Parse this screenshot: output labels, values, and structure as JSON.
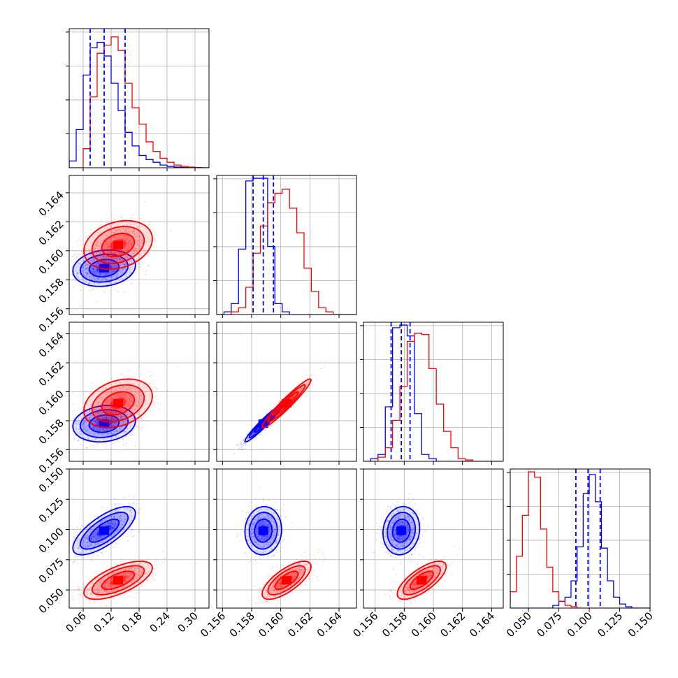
{
  "chart_data": {
    "type": "corner",
    "grid": true,
    "series": [
      {
        "name": "",
        "color": "#0000ff"
      },
      {
        "name": "",
        "color": "#ff0000"
      }
    ],
    "parameters": [
      {
        "range": [
          0.03,
          0.33
        ],
        "ticks": [
          0.06,
          0.12,
          0.18,
          0.24,
          0.3
        ],
        "tick_labels": [
          "0.06",
          "0.12",
          "0.18",
          "0.24",
          "0.30"
        ]
      },
      {
        "range": [
          0.1556,
          0.1652
        ],
        "ticks": [
          0.156,
          0.158,
          0.16,
          0.162,
          0.164
        ],
        "tick_labels": [
          "0.156",
          "0.158",
          "0.160",
          "0.162",
          "0.164"
        ]
      },
      {
        "range": [
          0.1552,
          0.1648
        ],
        "ticks": [
          0.156,
          0.158,
          0.16,
          0.162,
          0.164
        ],
        "tick_labels": [
          "0.156",
          "0.158",
          "0.160",
          "0.162",
          "0.164"
        ]
      },
      {
        "range": [
          0.035,
          0.15
        ],
        "ticks": [
          0.05,
          0.075,
          0.1,
          0.125,
          0.15
        ],
        "tick_labels": [
          "0.050",
          "0.075",
          "0.100",
          "0.125",
          "0.150"
        ]
      }
    ],
    "blue": {
      "means": [
        0.105,
        0.1588,
        0.1578,
        0.099
      ],
      "sigmas": [
        0.032,
        0.0006,
        0.0006,
        0.0095
      ],
      "quantiles": [
        [
          0.075,
          0.105,
          0.15
        ],
        [
          0.1581,
          0.1588,
          0.1595
        ],
        [
          0.1571,
          0.1578,
          0.1584
        ],
        [
          0.089,
          0.099,
          0.109
        ]
      ]
    },
    "red": {
      "means": [
        0.135,
        0.1604,
        0.1592,
        0.058
      ],
      "sigmas": [
        0.035,
        0.0008,
        0.0008,
        0.0075
      ]
    },
    "correlations": {
      "blue": {
        "0-1": 0.15,
        "0-2": 0.15,
        "0-3": 0.72,
        "1-2": 0.96,
        "1-3": 0.05,
        "2-3": 0.1
      },
      "red": {
        "0-1": 0.25,
        "0-2": 0.3,
        "0-3": 0.65,
        "1-2": 0.96,
        "1-3": 0.72,
        "2-3": 0.72
      }
    },
    "histograms": {
      "0": {
        "bins": [
          0.03,
          0.045,
          0.06,
          0.075,
          0.09,
          0.105,
          0.12,
          0.135,
          0.15,
          0.165,
          0.18,
          0.195,
          0.21,
          0.225,
          0.24,
          0.255,
          0.27,
          0.285,
          0.3,
          0.315,
          0.33
        ],
        "blue": [
          0.05,
          0.28,
          0.68,
          0.88,
          0.92,
          0.82,
          0.62,
          0.42,
          0.26,
          0.16,
          0.09,
          0.06,
          0.04,
          0.02,
          0.01,
          0.005,
          0.002,
          0,
          0,
          0
        ],
        "red": [
          0,
          0,
          0.14,
          0.52,
          0.84,
          0.9,
          0.96,
          0.86,
          0.62,
          0.44,
          0.32,
          0.19,
          0.12,
          0.07,
          0.04,
          0.02,
          0.01,
          0.005,
          0.002,
          0
        ]
      },
      "1": {
        "bins": [
          0.1556,
          0.1561,
          0.1566,
          0.1571,
          0.1576,
          0.1581,
          0.1586,
          0.1591,
          0.1596,
          0.1601,
          0.1606,
          0.1611,
          0.1616,
          0.1621,
          0.1626,
          0.1631,
          0.1636,
          0.1641,
          0.1646,
          0.1651
        ],
        "blue": [
          0,
          0.02,
          0.08,
          0.48,
          0.98,
          1.0,
          1.0,
          0.5,
          0.08,
          0.02,
          0,
          0,
          0,
          0,
          0,
          0,
          0,
          0,
          0
        ],
        "red": [
          0,
          0,
          0.02,
          0.05,
          0.2,
          0.45,
          0.65,
          0.82,
          0.89,
          0.92,
          0.78,
          0.6,
          0.34,
          0.17,
          0.05,
          0.02,
          0,
          0,
          0
        ]
      },
      "2": {
        "bins": [
          0.1552,
          0.1557,
          0.1562,
          0.1567,
          0.1572,
          0.1577,
          0.1582,
          0.1587,
          0.1592,
          0.1597,
          0.1602,
          0.1607,
          0.1612,
          0.1617,
          0.1622,
          0.1627,
          0.1632,
          0.1637,
          0.1642,
          0.1647
        ],
        "blue": [
          0,
          0.02,
          0.05,
          0.4,
          0.98,
          1.0,
          0.92,
          0.35,
          0.05,
          0.02,
          0,
          0,
          0,
          0,
          0,
          0,
          0,
          0,
          0
        ],
        "red": [
          0,
          0,
          0.03,
          0.1,
          0.3,
          0.55,
          0.88,
          0.94,
          0.93,
          0.68,
          0.42,
          0.22,
          0.1,
          0.02,
          0.01,
          0,
          0,
          0,
          0
        ]
      },
      "3": {
        "bins": [
          0.035,
          0.04,
          0.045,
          0.05,
          0.055,
          0.06,
          0.065,
          0.07,
          0.075,
          0.08,
          0.085,
          0.09,
          0.095,
          0.1,
          0.105,
          0.11,
          0.115,
          0.12,
          0.125,
          0.13,
          0.135,
          0.14,
          0.145,
          0.15
        ],
        "blue": [
          0,
          0,
          0,
          0,
          0,
          0,
          0,
          0.02,
          0.05,
          0.08,
          0.2,
          0.45,
          0.84,
          0.98,
          0.78,
          0.44,
          0.2,
          0.08,
          0.03,
          0.01,
          0,
          0,
          0
        ],
        "red": [
          0.12,
          0.38,
          0.68,
          1.0,
          0.96,
          0.58,
          0.3,
          0.12,
          0.05,
          0.02,
          0.01,
          0,
          0,
          0,
          0,
          0,
          0,
          0,
          0,
          0,
          0,
          0,
          0
        ]
      }
    }
  }
}
